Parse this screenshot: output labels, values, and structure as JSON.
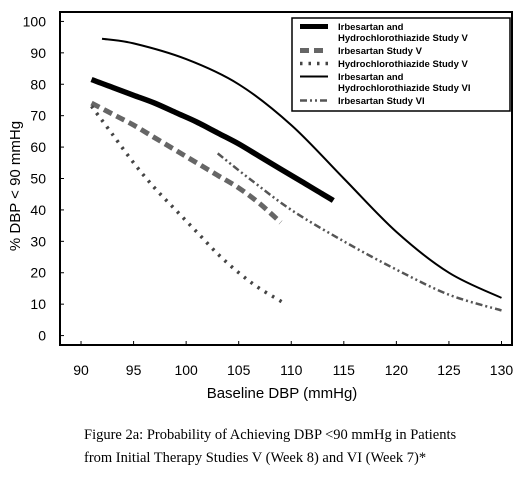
{
  "chart_data": {
    "type": "line",
    "xlabel": "Baseline DBP (mmHg)",
    "ylabel": "% DBP < 90 mmHg",
    "xlim": [
      88,
      131
    ],
    "ylim": [
      -3,
      103
    ],
    "xticks": [
      "90",
      "95",
      "100",
      "105",
      "110",
      "115",
      "120",
      "125",
      "130"
    ],
    "yticks": [
      "0",
      "10",
      "20",
      "30",
      "40",
      "50",
      "60",
      "70",
      "80",
      "90",
      "100"
    ],
    "grid": false,
    "legend_position": "top-right",
    "series": [
      {
        "name": "Irbesartan and Hydrochlorothiazide Study V",
        "legend_lines": [
          "Irbesartan and",
          "Hydrochlorothiazide Study V"
        ],
        "style": "thick-solid",
        "color": "#000000",
        "x": [
          91,
          93,
          95,
          97,
          99,
          101,
          103,
          105,
          107,
          109,
          111,
          113,
          114
        ],
        "y": [
          81.5,
          79,
          76.5,
          74,
          71,
          68,
          64.5,
          61,
          57,
          53,
          49,
          45,
          43
        ]
      },
      {
        "name": "Irbesartan Study V",
        "legend_lines": [
          "Irbesartan Study V"
        ],
        "style": "dash",
        "color": "#666666",
        "x": [
          91,
          93,
          95,
          97,
          99,
          101,
          103,
          105,
          107,
          109
        ],
        "y": [
          74,
          70.5,
          67,
          63,
          59,
          55,
          51,
          47,
          42,
          36
        ]
      },
      {
        "name": "Hydrochlorothiazide Study V",
        "legend_lines": [
          "Hydrochlorothiazide Study V"
        ],
        "style": "dotted",
        "color": "#444444",
        "x": [
          91,
          93,
          95,
          97,
          99,
          101,
          103,
          105,
          107,
          109.5
        ],
        "y": [
          73,
          64,
          55,
          47,
          40,
          33,
          26,
          20,
          15,
          10
        ]
      },
      {
        "name": "Irbesartan and Hydrochlorothiazide Study VI",
        "legend_lines": [
          "Irbesartan and",
          "Hydrochlorothiazide Study VI"
        ],
        "style": "thin-solid",
        "color": "#000000",
        "x": [
          92,
          95,
          100,
          105,
          110,
          115,
          120,
          125,
          130
        ],
        "y": [
          94.5,
          93,
          88,
          80,
          67,
          50,
          33,
          20,
          12
        ]
      },
      {
        "name": "Irbesartan Study VI",
        "legend_lines": [
          "Irbesartan Study VI"
        ],
        "style": "dash-dot-dot",
        "color": "#555555",
        "x": [
          103,
          106,
          110,
          115,
          120,
          125,
          130
        ],
        "y": [
          58,
          50,
          40,
          30,
          21,
          13,
          8
        ]
      }
    ]
  },
  "caption": {
    "line1": "Figure 2a: Probability of Achieving DBP <90 mmHg in Patients",
    "line2": "from Initial Therapy Studies V (Week 8) and VI (Week 7)*"
  }
}
